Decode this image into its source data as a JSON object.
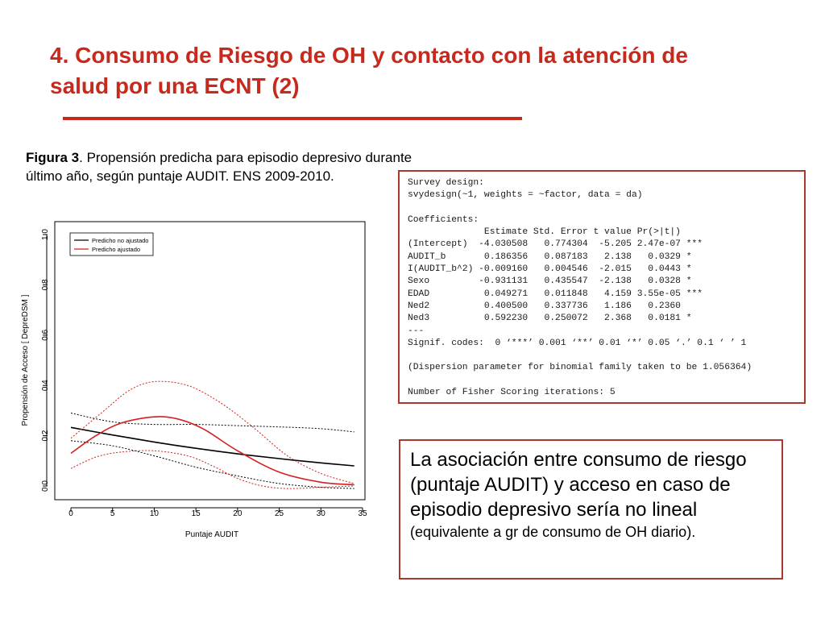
{
  "slide": {
    "title": "4. Consumo de Riesgo de OH y contacto con la atención de salud por una ECNT (2)",
    "caption_bold": "Figura 3",
    "caption_text": ". Propensión predicha para episodio depresivo durante último año, según puntaje AUDIT. ENS 2009-2010."
  },
  "r_output": {
    "lines": [
      "Survey design:",
      "svydesign(~1, weights = ~factor, data = da)",
      "",
      "Coefficients:",
      "              Estimate Std. Error t value Pr(>|t|)",
      "(Intercept)  -4.030508   0.774304  -5.205 2.47e-07 ***",
      "AUDIT_b       0.186356   0.087183   2.138   0.0329 *",
      "I(AUDIT_b^2) -0.009160   0.004546  -2.015   0.0443 *",
      "Sexo         -0.931131   0.435547  -2.138   0.0328 *",
      "EDAD          0.049271   0.011848   4.159 3.55e-05 ***",
      "Ned2          0.400500   0.337736   1.186   0.2360",
      "Ned3          0.592230   0.250072   2.368   0.0181 *",
      "---",
      "Signif. codes:  0 ‘***’ 0.001 ‘**’ 0.01 ‘*’ 0.05 ‘.’ 0.1 ‘ ’ 1",
      "",
      "(Dispersion parameter for binomial family taken to be 1.056364)",
      "",
      "Number of Fisher Scoring iterations: 5"
    ]
  },
  "note": {
    "main": "La asociación entre consumo de riesgo (puntaje AUDIT) y  acceso en caso de episodio depresivo sería no lineal",
    "small": " (equivalente a gr de consumo de OH diario)."
  },
  "colors": {
    "title": "#c72a1c",
    "box_border": "#a8382b",
    "red_series": "#d42020",
    "black_series": "#000000"
  },
  "chart_data": {
    "type": "line",
    "xlabel": "Puntaje AUDIT",
    "ylabel": "Propensión de Acceso [ DepreDSM ]",
    "xlim": [
      0,
      35
    ],
    "ylim": [
      0.0,
      1.0
    ],
    "x_ticks": [
      "0",
      "5",
      "10",
      "15",
      "20",
      "25",
      "30",
      "35"
    ],
    "y_ticks": [
      "0.0",
      "0.2",
      "0.4",
      "0.6",
      "0.8",
      "1.0"
    ],
    "legend": {
      "placement": "top-left",
      "entries": [
        {
          "label": "Predicho no ajustado",
          "color": "#000000"
        },
        {
          "label": "Predicho ajustado",
          "color": "#d42020"
        }
      ]
    },
    "series": [
      {
        "key": "unadjusted",
        "color": "#000000",
        "dash": false,
        "x": [
          0,
          5,
          10,
          15,
          20,
          25,
          30,
          34
        ],
        "y": [
          0.233,
          0.203,
          0.175,
          0.15,
          0.128,
          0.109,
          0.092,
          0.08
        ]
      },
      {
        "key": "unadjusted_upper",
        "color": "#000000",
        "dash": true,
        "x": [
          0,
          5,
          10,
          15,
          20,
          25,
          30,
          34
        ],
        "y": [
          0.29,
          0.255,
          0.245,
          0.245,
          0.24,
          0.235,
          0.228,
          0.215
        ]
      },
      {
        "key": "unadjusted_lower",
        "color": "#000000",
        "dash": true,
        "x": [
          0,
          5,
          10,
          15,
          20,
          25,
          30,
          34
        ],
        "y": [
          0.18,
          0.16,
          0.12,
          0.075,
          0.04,
          0.01,
          -0.005,
          -0.01
        ]
      },
      {
        "key": "adjusted",
        "color": "#d42020",
        "dash": false,
        "x": [
          0,
          3,
          6,
          10,
          13,
          16,
          20,
          25,
          30,
          34
        ],
        "y": [
          0.13,
          0.2,
          0.25,
          0.275,
          0.265,
          0.225,
          0.14,
          0.055,
          0.015,
          0.005
        ]
      },
      {
        "key": "adjusted_upper",
        "color": "#d42020",
        "dash": true,
        "x": [
          0,
          4,
          7,
          10,
          14,
          18,
          22,
          26,
          30,
          34
        ],
        "y": [
          0.19,
          0.3,
          0.38,
          0.415,
          0.4,
          0.33,
          0.23,
          0.12,
          0.05,
          0.01
        ]
      },
      {
        "key": "adjusted_lower",
        "color": "#d42020",
        "dash": true,
        "x": [
          0,
          3,
          6,
          10,
          14,
          17,
          20,
          23,
          26,
          30,
          34
        ],
        "y": [
          0.07,
          0.115,
          0.135,
          0.14,
          0.12,
          0.08,
          0.03,
          0.0,
          -0.01,
          -0.005,
          0.0
        ]
      }
    ]
  }
}
